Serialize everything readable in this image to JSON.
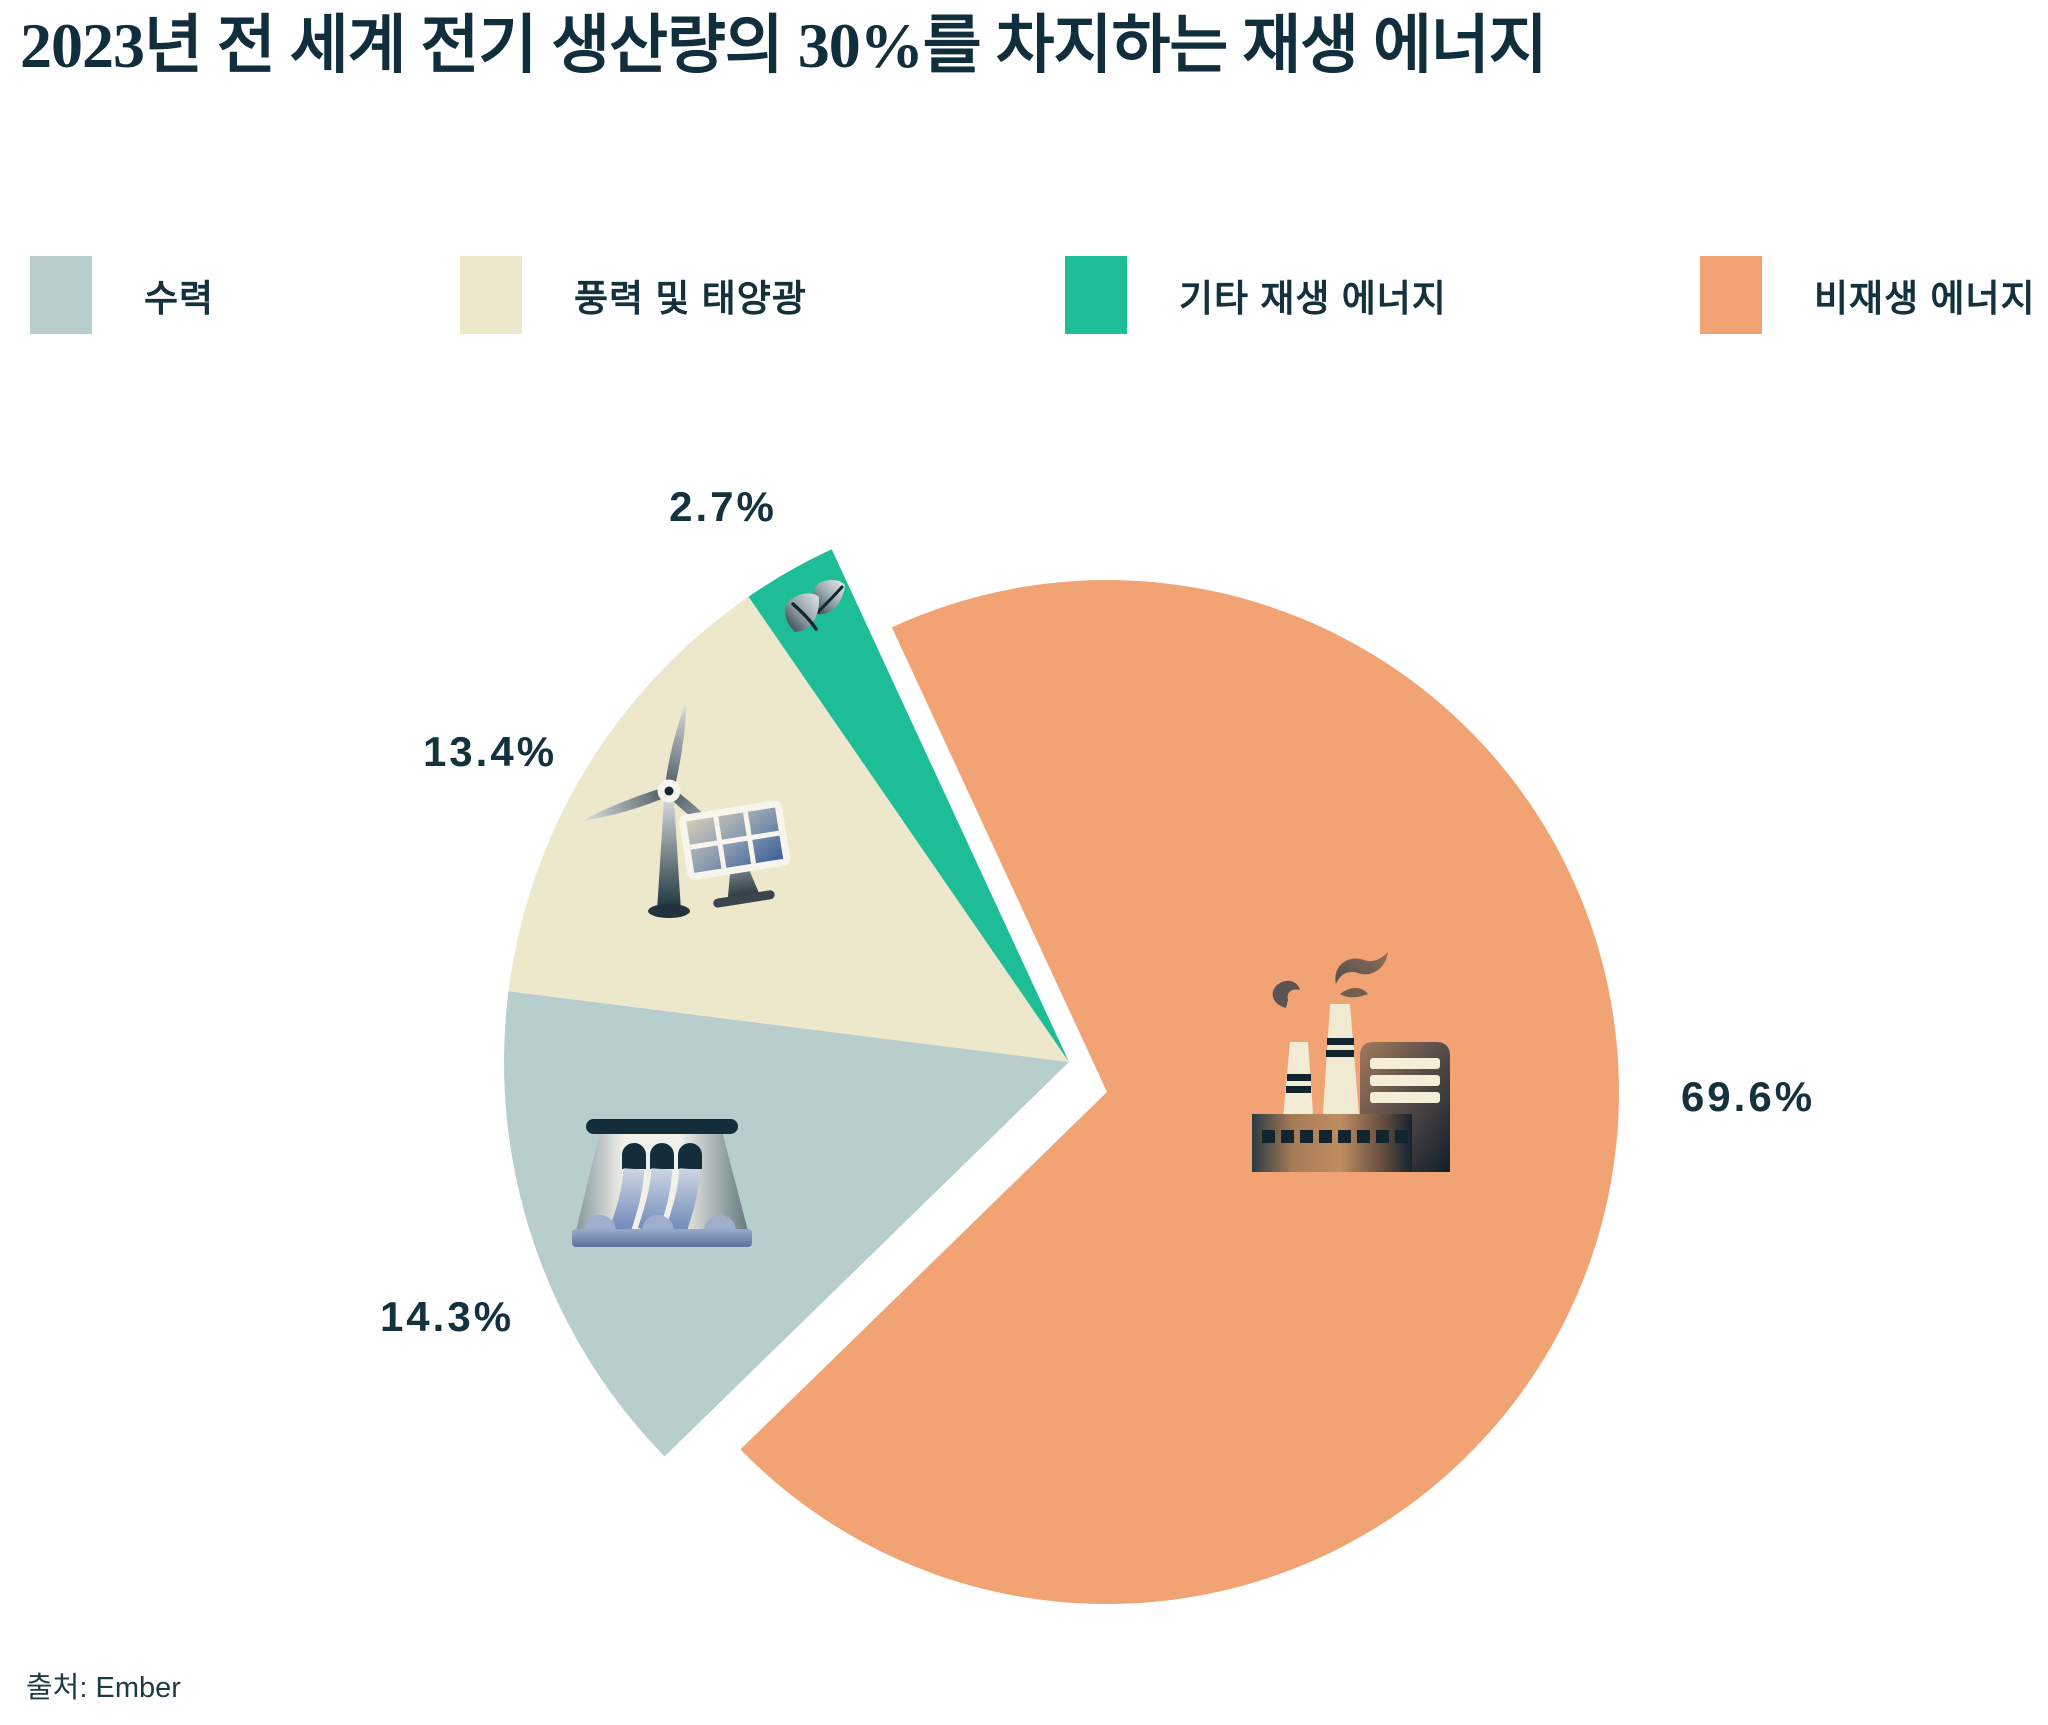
{
  "title": "2023년 전 세계 전기 생산량의 30%를 차지하는 재생 에너지",
  "source": "출처: Ember",
  "legend": {
    "position": "top",
    "items": [
      {
        "label": "수력",
        "color": "#b7cecd"
      },
      {
        "label": "풍력 및 태양광",
        "color": "#ede8cc"
      },
      {
        "label": "기타 재생 에너지",
        "color": "#1dbd97"
      },
      {
        "label": "비재생 에너지",
        "color": "#f2a374"
      }
    ]
  },
  "chart_data": {
    "type": "pie",
    "title": "2023년 전 세계 전기 생산량의 30%를 차지하는 재생 에너지",
    "unit": "%",
    "slices": [
      {
        "label": "수력",
        "value": 14.3,
        "display": "14.3%",
        "color": "#b7cecd",
        "group": "renewable",
        "icon": "hydro-dam-icon"
      },
      {
        "label": "풍력 및 태양광",
        "value": 13.4,
        "display": "13.4%",
        "color": "#ede8cc",
        "group": "renewable",
        "icon": "wind-turbine-solar-panel-icon"
      },
      {
        "label": "기타 재생 에너지",
        "value": 2.7,
        "display": "2.7%",
        "color": "#1dbd97",
        "group": "renewable",
        "icon": "leaf-icon"
      },
      {
        "label": "비재생 에너지",
        "value": 69.6,
        "display": "69.6%",
        "color": "#f2a374",
        "group": "non_renewable",
        "icon": "factory-icon"
      }
    ],
    "layout": {
      "rotation_deg": 224.28,
      "direction": "clockwise",
      "explode_group": "renewable",
      "legend_position": "top",
      "value_labels": "outside"
    }
  },
  "text_colors": {
    "title": "#112e3c",
    "labels": "#14323e",
    "source": "#1d3b47"
  }
}
